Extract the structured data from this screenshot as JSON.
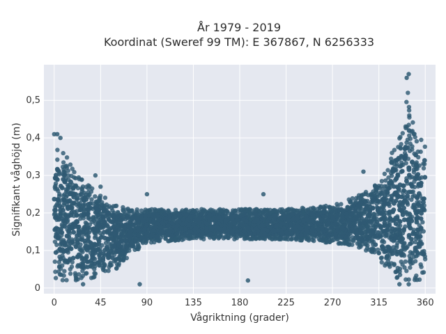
{
  "chart_data": {
    "type": "scatter",
    "title_line1": "År 1979 - 2019",
    "title_line2": "Koordinat (Sweref 99 TM): E 367867, N 6256333",
    "xlabel": "Vågriktning (grader)",
    "ylabel": "Signifikant våghöjd (m)",
    "xlim": [
      -10,
      370
    ],
    "ylim": [
      -0.015,
      0.595
    ],
    "xticks": [
      0,
      45,
      90,
      135,
      180,
      225,
      270,
      315,
      360
    ],
    "xtick_labels": [
      "0",
      "45",
      "90",
      "135",
      "180",
      "225",
      "270",
      "315",
      "360"
    ],
    "yticks": [
      0,
      0.1,
      0.2,
      0.3,
      0.4,
      0.5
    ],
    "ytick_labels": [
      "0",
      "0,1",
      "0,2",
      "0,3",
      "0,4",
      "0,5"
    ],
    "grid": true,
    "marker_color": "#2f5a73",
    "background_color": "#e5e8f0",
    "envelope": {
      "direction": [
        0,
        5,
        10,
        20,
        30,
        40,
        50,
        60,
        75,
        90,
        135,
        180,
        225,
        270,
        290,
        310,
        320,
        330,
        335,
        340,
        343,
        346,
        350,
        355,
        360
      ],
      "upper_height": [
        0.4,
        0.38,
        0.36,
        0.31,
        0.29,
        0.26,
        0.24,
        0.22,
        0.21,
        0.21,
        0.21,
        0.21,
        0.21,
        0.22,
        0.24,
        0.27,
        0.3,
        0.38,
        0.42,
        0.48,
        0.53,
        0.47,
        0.42,
        0.41,
        0.4
      ],
      "lower_height": [
        0.02,
        0.02,
        0.02,
        0.02,
        0.02,
        0.03,
        0.04,
        0.05,
        0.09,
        0.12,
        0.13,
        0.13,
        0.13,
        0.12,
        0.11,
        0.09,
        0.06,
        0.03,
        0.02,
        0.02,
        0.02,
        0.02,
        0.02,
        0.02,
        0.02
      ]
    },
    "outliers": [
      {
        "x": 0,
        "y": 0.41
      },
      {
        "x": 3,
        "y": 0.41
      },
      {
        "x": 6,
        "y": 0.4
      },
      {
        "x": 344,
        "y": 0.57
      },
      {
        "x": 342,
        "y": 0.56
      },
      {
        "x": 330,
        "y": 0.33
      },
      {
        "x": 325,
        "y": 0.28
      },
      {
        "x": 300,
        "y": 0.31
      },
      {
        "x": 40,
        "y": 0.3
      },
      {
        "x": 45,
        "y": 0.27
      },
      {
        "x": 90,
        "y": 0.25
      },
      {
        "x": 203,
        "y": 0.25
      },
      {
        "x": 188,
        "y": 0.02
      },
      {
        "x": 83,
        "y": 0.01
      },
      {
        "x": 28,
        "y": 0.01
      },
      {
        "x": 335,
        "y": 0.01
      },
      {
        "x": 344,
        "y": 0.01
      }
    ]
  }
}
